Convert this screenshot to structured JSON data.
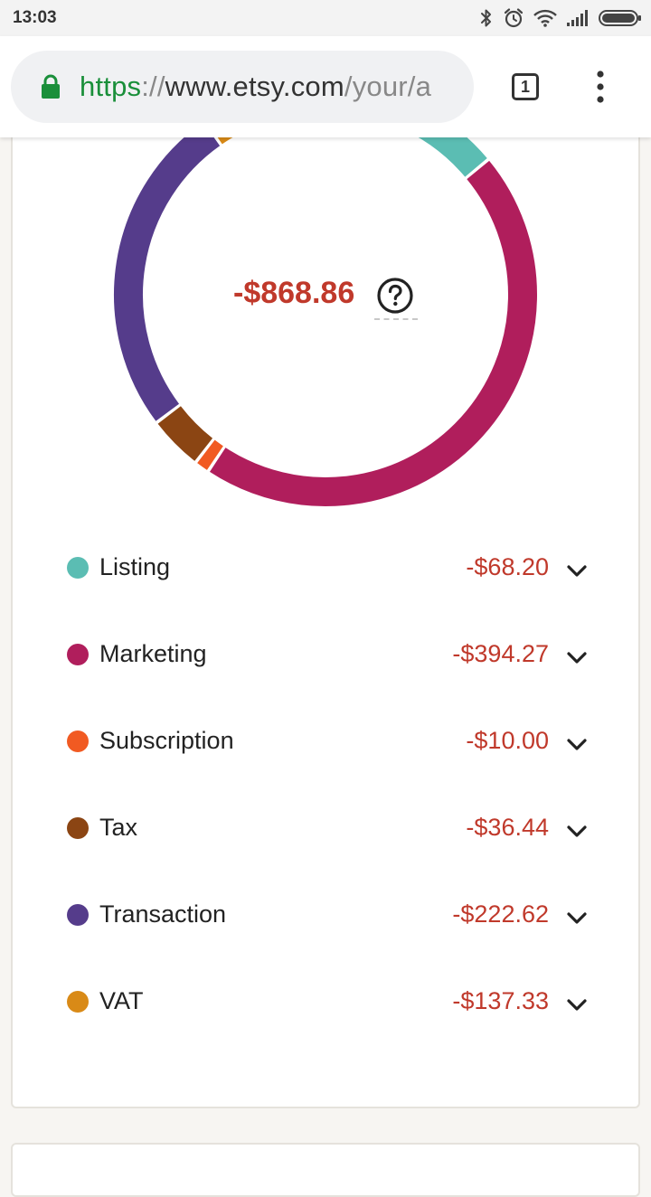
{
  "status_bar": {
    "time": "13:03"
  },
  "browser": {
    "url_scheme": "https",
    "url_separator": "://",
    "url_host": "www.etsy.com",
    "url_path": "/your/a",
    "tab_count": "1"
  },
  "summary": {
    "total": "-$868.86"
  },
  "colors": {
    "negative": "#c0392b"
  },
  "chart_data": {
    "type": "pie",
    "series": [
      {
        "name": "Listing",
        "value": 68.2,
        "color": "#5bbdb3"
      },
      {
        "name": "Marketing",
        "value": 394.27,
        "color": "#b01e5c"
      },
      {
        "name": "Subscription",
        "value": 10.0,
        "color": "#f15a22"
      },
      {
        "name": "Tax",
        "value": 36.44,
        "color": "#8b4513"
      },
      {
        "name": "Transaction",
        "value": 222.62,
        "color": "#553c8b"
      },
      {
        "name": "VAT",
        "value": 137.33,
        "color": "#d98a17"
      }
    ]
  },
  "legend": {
    "items": [
      {
        "label": "Listing",
        "amount": "-$68.20",
        "color": "#5bbdb3"
      },
      {
        "label": "Marketing",
        "amount": "-$394.27",
        "color": "#b01e5c"
      },
      {
        "label": "Subscription",
        "amount": "-$10.00",
        "color": "#f15a22"
      },
      {
        "label": "Tax",
        "amount": "-$36.44",
        "color": "#8b4513"
      },
      {
        "label": "Transaction",
        "amount": "-$222.62",
        "color": "#553c8b"
      },
      {
        "label": "VAT",
        "amount": "-$137.33",
        "color": "#d98a17"
      }
    ]
  }
}
